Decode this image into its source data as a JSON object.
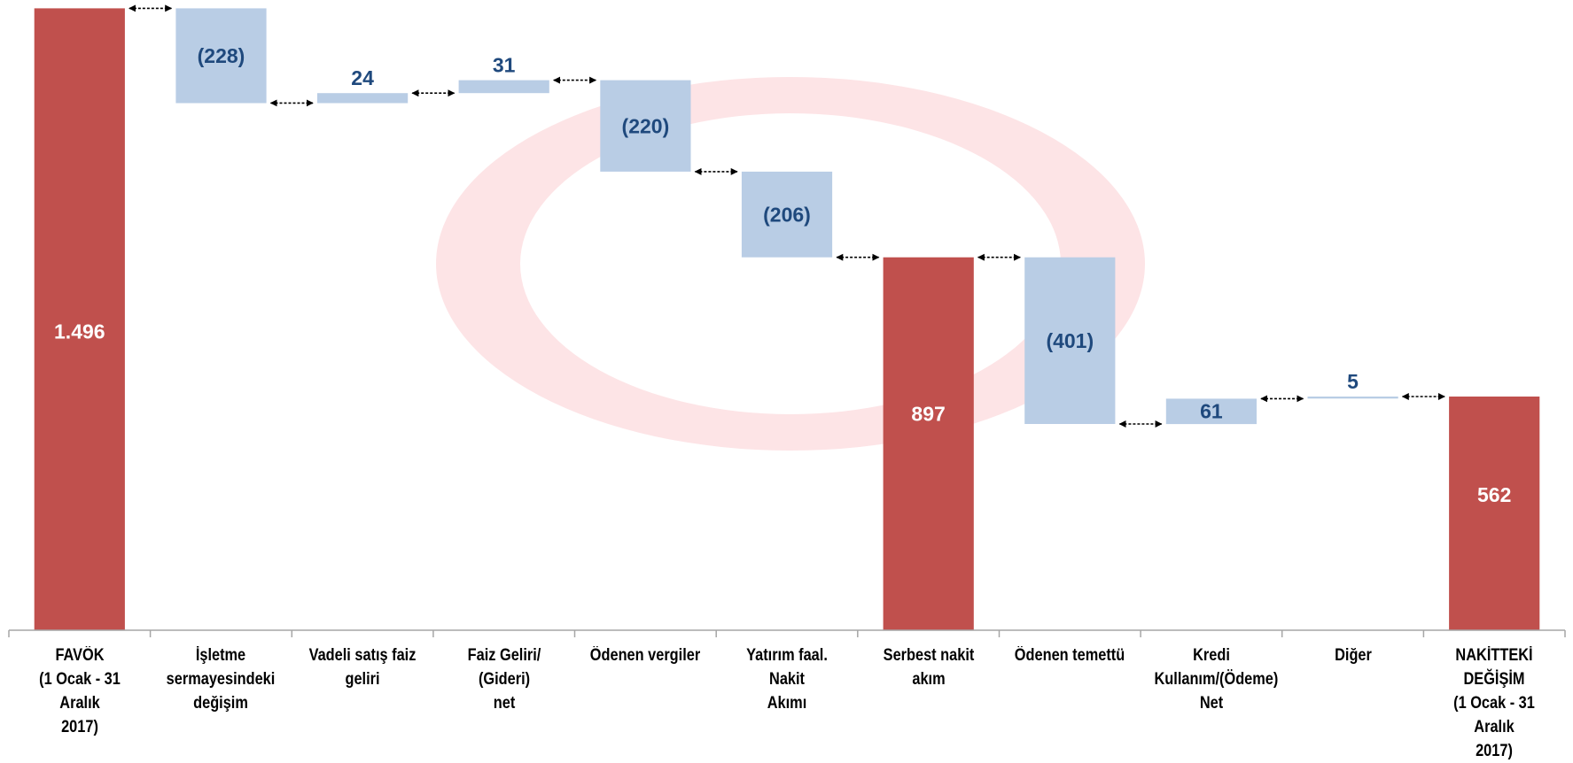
{
  "chart_data": {
    "type": "bar",
    "subtype": "waterfall",
    "categories": [
      "FAVÖK\n(1 Ocak  - 31  Aralık\n2017)",
      "İşletme\nsermayesindeki\ndeğişim",
      "Vadeli satış faiz\ngeliri",
      "Faiz Geliri/ (Gideri)\nnet",
      "Ödenen vergiler",
      "Yatırım faal. Nakit\nAkımı",
      "Serbest nakit akım",
      "Ödenen temettü",
      "Kredi\nKullanım/(Ödeme)\nNet",
      "Diğer",
      "NAKİTTEKİ\nDEĞİŞİM\n(1 Ocak - 31 Aralık\n2017)"
    ],
    "values": [
      1496,
      -228,
      24,
      31,
      -220,
      -206,
      897,
      -401,
      61,
      5,
      562
    ],
    "kinds": [
      "total",
      "delta",
      "delta",
      "delta",
      "delta",
      "delta",
      "total",
      "delta",
      "delta",
      "delta",
      "total"
    ],
    "data_labels": [
      "1.496",
      "(228)",
      "24",
      "31",
      "(220)",
      "(206)",
      "897",
      "(401)",
      "61",
      "5",
      "562"
    ],
    "ylim": [
      0,
      1500
    ],
    "grid": false,
    "legend": "none",
    "title": "",
    "xlabel": "",
    "ylabel": "",
    "colors": {
      "total": "#c0504d",
      "delta": "#b9cde5",
      "total_label": "#ffffff",
      "delta_label": "#1f497d",
      "connector": "#000000",
      "axis": "#a6a6a6",
      "watermark": "#fde4e6"
    }
  }
}
